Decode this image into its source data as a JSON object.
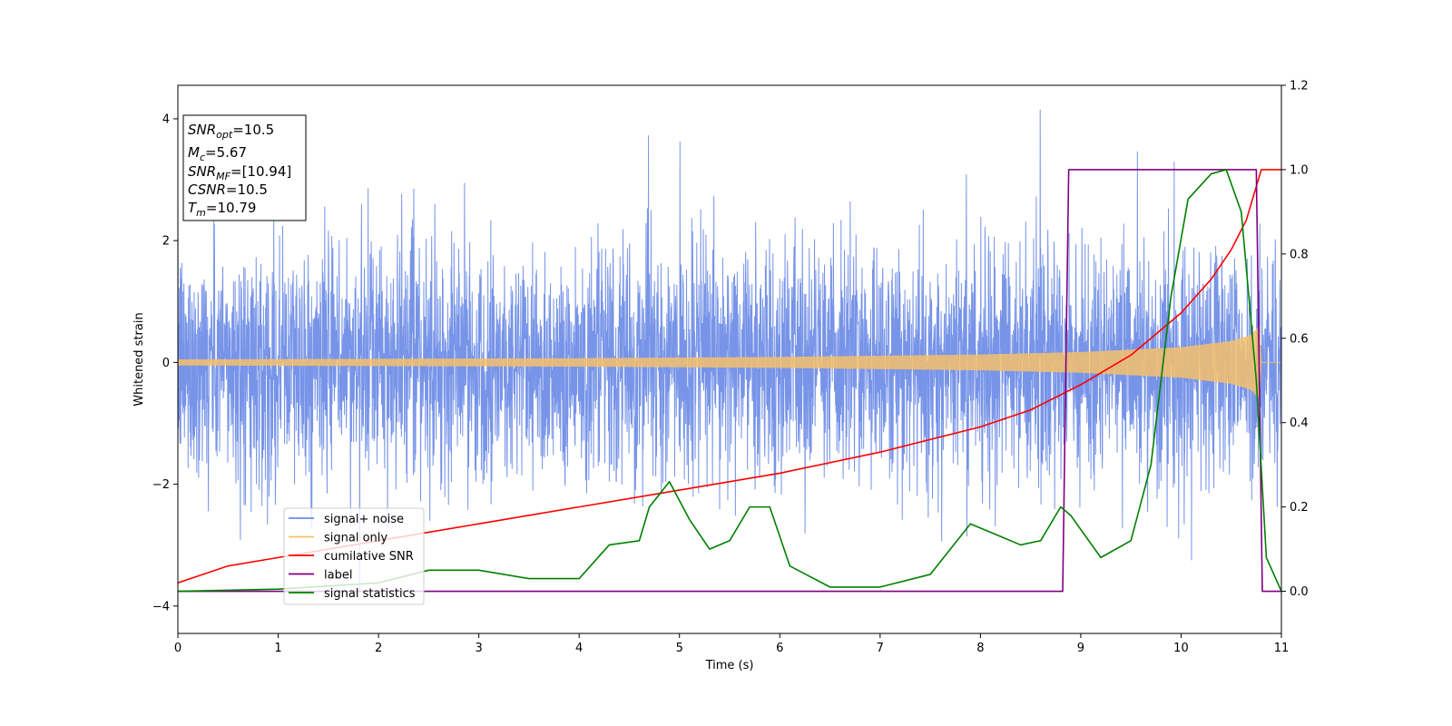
{
  "chart_data": {
    "type": "line",
    "title": "",
    "xlabel": "Time (s)",
    "ylabel": "Whitened strain",
    "xlim": [
      0,
      11
    ],
    "ylim_left": [
      -4.45,
      4.55
    ],
    "ylim_right": [
      -0.1,
      1.2
    ],
    "x_ticks": [
      0,
      1,
      2,
      3,
      4,
      5,
      6,
      7,
      8,
      9,
      10,
      11
    ],
    "y_left_ticks": [
      -4,
      -2,
      0,
      2,
      4
    ],
    "y_right_ticks": [
      0.0,
      0.2,
      0.4,
      0.6,
      0.8,
      1.0,
      1.2
    ],
    "grid": false,
    "legend_position": "lower-left",
    "series": [
      {
        "name": "signal+ noise",
        "color": "#6b8be6",
        "axis": "left",
        "style": "noisy-band",
        "typical_range": [
          -1.9,
          2.0
        ],
        "extremes": [
          -4.05,
          4.15
        ]
      },
      {
        "name": "signal only",
        "color": "#f4c06b",
        "axis": "left",
        "style": "chirp",
        "x": [
          0,
          2,
          4,
          6,
          8,
          9,
          10,
          10.5,
          10.7,
          10.78,
          10.8,
          11
        ],
        "amplitude": [
          0.05,
          0.06,
          0.07,
          0.09,
          0.13,
          0.17,
          0.25,
          0.35,
          0.45,
          0.6,
          0,
          0
        ]
      },
      {
        "name": "cumilative SNR",
        "color": "#ff0000",
        "axis": "right",
        "x": [
          0,
          0.5,
          1,
          2,
          3,
          4,
          5,
          6,
          7,
          8,
          8.5,
          9,
          9.5,
          10,
          10.3,
          10.5,
          10.65,
          10.75,
          10.8,
          11
        ],
        "y": [
          0.02,
          0.06,
          0.08,
          0.12,
          0.16,
          0.2,
          0.24,
          0.28,
          0.33,
          0.39,
          0.43,
          0.49,
          0.56,
          0.66,
          0.74,
          0.81,
          0.88,
          0.96,
          1.0,
          1.0
        ]
      },
      {
        "name": "label",
        "color": "#800080",
        "axis": "right",
        "x": [
          0,
          8.82,
          8.88,
          10.75,
          10.81,
          11
        ],
        "y": [
          0,
          0,
          1,
          1,
          0,
          0
        ]
      },
      {
        "name": "signal statistics",
        "color": "#008000",
        "axis": "right",
        "x": [
          0,
          1,
          2,
          2.5,
          3,
          3.5,
          4,
          4.3,
          4.6,
          4.7,
          4.9,
          5.1,
          5.3,
          5.5,
          5.7,
          5.9,
          6.1,
          6.5,
          7,
          7.5,
          7.9,
          8.2,
          8.4,
          8.6,
          8.8,
          8.9,
          9.2,
          9.5,
          9.7,
          9.9,
          10.07,
          10.3,
          10.45,
          10.6,
          10.75,
          10.85,
          11
        ],
        "y": [
          0,
          0.005,
          0.02,
          0.05,
          0.05,
          0.03,
          0.03,
          0.11,
          0.12,
          0.2,
          0.26,
          0.17,
          0.1,
          0.12,
          0.2,
          0.2,
          0.06,
          0.01,
          0.01,
          0.04,
          0.16,
          0.13,
          0.11,
          0.12,
          0.2,
          0.18,
          0.08,
          0.12,
          0.3,
          0.7,
          0.93,
          0.99,
          1.0,
          0.9,
          0.5,
          0.08,
          0.0
        ]
      }
    ],
    "info_box": [
      {
        "main": "SNR",
        "sub": "opt",
        "value": "=10.5"
      },
      {
        "main": "M",
        "sub": "c",
        "value": "=5.67"
      },
      {
        "main": "SNR",
        "sub": "MF",
        "value": "=[10.94]"
      },
      {
        "main": "CSNR",
        "sub": "",
        "value": "=10.5"
      },
      {
        "main": "T",
        "sub": "m",
        "value": "=10.79"
      }
    ]
  }
}
